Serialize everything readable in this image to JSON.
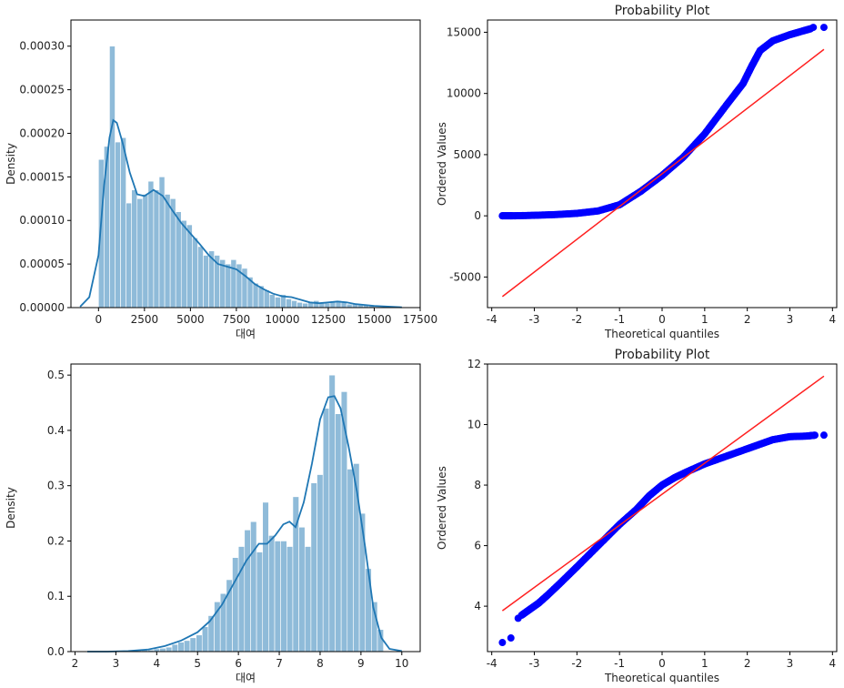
{
  "chart_data": [
    {
      "type": "bar",
      "subtype": "histogram-with-kde",
      "title": "",
      "xlabel": "대여",
      "ylabel": "Density",
      "xlim": [
        -1500,
        17500
      ],
      "ylim": [
        0,
        0.00033
      ],
      "xticks": [
        0,
        2500,
        5000,
        7500,
        10000,
        12500,
        15000,
        17500
      ],
      "yticks": [
        0,
        5e-05,
        0.0001,
        0.00015,
        0.0002,
        0.00025,
        0.0003
      ],
      "ytick_labels": [
        "0.00000",
        "0.00005",
        "0.00010",
        "0.00015",
        "0.00020",
        "0.00025",
        "0.00030"
      ],
      "xtick_labels": [
        "0",
        "2500",
        "5000",
        "7500",
        "10000",
        "12500",
        "15000",
        "17500"
      ],
      "bin_start": 0,
      "bin_width": 300,
      "values": [
        0.00017,
        0.000185,
        0.0003,
        0.00019,
        0.000195,
        0.00012,
        0.000135,
        0.000125,
        0.00013,
        0.000145,
        0.000135,
        0.00015,
        0.00013,
        0.000125,
        0.00011,
        0.0001,
        9.5e-05,
        8e-05,
        7e-05,
        6e-05,
        6.5e-05,
        6e-05,
        5.5e-05,
        5e-05,
        5.5e-05,
        5e-05,
        4.5e-05,
        3.5e-05,
        2.8e-05,
        2.5e-05,
        2e-05,
        1.5e-05,
        1.2e-05,
        1.5e-05,
        1e-05,
        8e-06,
        6e-06,
        5e-06,
        6e-06,
        8e-06,
        6e-06,
        5e-06,
        7e-06,
        8e-06,
        6e-06,
        4e-06,
        4e-06,
        4e-06,
        3e-06,
        2e-06,
        1e-06
      ],
      "kde": {
        "x": [
          -1000,
          -500,
          0,
          300,
          600,
          800,
          1000,
          1300,
          1700,
          2100,
          2500,
          3000,
          3500,
          4000,
          4500,
          5000,
          5500,
          6000,
          6500,
          7000,
          7500,
          8000,
          8500,
          9000,
          9500,
          10000,
          10500,
          11000,
          11500,
          12000,
          12500,
          13000,
          13500,
          14000,
          14500,
          15000,
          15500,
          16000,
          16500
        ],
        "y": [
          1e-06,
          1.2e-05,
          6e-05,
          0.00014,
          0.000195,
          0.000215,
          0.000212,
          0.00019,
          0.000155,
          0.00013,
          0.000128,
          0.000135,
          0.000128,
          0.000112,
          9.7e-05,
          8.5e-05,
          7.3e-05,
          6e-05,
          5e-05,
          4.7e-05,
          4.4e-05,
          3.6e-05,
          2.7e-05,
          2.1e-05,
          1.6e-05,
          1.3e-05,
          1.2e-05,
          9e-06,
          6e-06,
          5e-06,
          6e-06,
          7e-06,
          6e-06,
          4e-06,
          3e-06,
          2e-06,
          1.5e-06,
          8e-07,
          3e-07
        ]
      },
      "color": "#1f77b4",
      "bar_color": "#8fbbd9"
    },
    {
      "type": "scatter",
      "subtype": "probability-plot",
      "title": "Probability Plot",
      "xlabel": "Theoretical quantiles",
      "ylabel": "Ordered Values",
      "xlim": [
        -4.1,
        4.1
      ],
      "ylim": [
        -7500,
        16000
      ],
      "xticks": [
        -4,
        -3,
        -2,
        -1,
        0,
        1,
        2,
        3,
        4
      ],
      "yticks": [
        -5000,
        0,
        5000,
        10000,
        15000
      ],
      "xtick_labels": [
        "-4",
        "-3",
        "-2",
        "-1",
        "0",
        "1",
        "2",
        "3",
        "4"
      ],
      "ytick_labels": [
        "-5000",
        "0",
        "5000",
        "10000",
        "15000"
      ],
      "curve_x": [
        -3.75,
        -3.5,
        -3.0,
        -2.5,
        -2.0,
        -1.5,
        -1.0,
        -0.5,
        0.0,
        0.5,
        1.0,
        1.5,
        1.9,
        2.1,
        2.3,
        2.6,
        3.0,
        3.3,
        3.5
      ],
      "curve_y": [
        0,
        0,
        40,
        100,
        200,
        400,
        900,
        2000,
        3300,
        4800,
        6700,
        9000,
        10800,
        12200,
        13500,
        14300,
        14800,
        15100,
        15300
      ],
      "outliers_x": [
        -3.75,
        -3.55,
        -3.45,
        3.55,
        3.8
      ],
      "outliers_y": [
        0,
        0,
        0,
        15400,
        15400
      ],
      "fit_line": {
        "x": [
          -3.75,
          3.8
        ],
        "y": [
          -6600,
          13600
        ]
      },
      "marker_color": "#0000ff",
      "line_color": "#ff2020"
    },
    {
      "type": "bar",
      "subtype": "histogram-with-kde",
      "title": "",
      "xlabel": "대여",
      "ylabel": "Density",
      "xlim": [
        1.9,
        10.45
      ],
      "ylim": [
        0,
        0.52
      ],
      "xticks": [
        2,
        3,
        4,
        5,
        6,
        7,
        8,
        9,
        10
      ],
      "yticks": [
        0,
        0.1,
        0.2,
        0.3,
        0.4,
        0.5
      ],
      "xtick_labels": [
        "2",
        "3",
        "4",
        "5",
        "6",
        "7",
        "8",
        "9",
        "10"
      ],
      "ytick_labels": [
        "0.0",
        "0.1",
        "0.2",
        "0.3",
        "0.4",
        "0.5"
      ],
      "bin_start": 2.3,
      "bin_width": 0.148,
      "values": [
        0.001,
        0,
        0.001,
        0,
        0.001,
        0.001,
        0.001,
        0.002,
        0.002,
        0.003,
        0.003,
        0.005,
        0.006,
        0.008,
        0.013,
        0.017,
        0.02,
        0.025,
        0.03,
        0.045,
        0.065,
        0.09,
        0.105,
        0.13,
        0.17,
        0.19,
        0.22,
        0.235,
        0.18,
        0.27,
        0.21,
        0.2,
        0.2,
        0.19,
        0.28,
        0.225,
        0.19,
        0.305,
        0.32,
        0.44,
        0.5,
        0.43,
        0.47,
        0.33,
        0.34,
        0.25,
        0.15,
        0.09,
        0.04
      ],
      "kde": {
        "x": [
          2.3,
          2.8,
          3.3,
          3.8,
          4.2,
          4.6,
          5.0,
          5.3,
          5.6,
          5.9,
          6.2,
          6.5,
          6.7,
          6.9,
          7.1,
          7.25,
          7.4,
          7.6,
          7.8,
          8.0,
          8.2,
          8.35,
          8.5,
          8.7,
          8.9,
          9.1,
          9.3,
          9.5,
          9.7,
          10.0
        ],
        "y": [
          0.0,
          0.0,
          0.001,
          0.004,
          0.01,
          0.02,
          0.035,
          0.055,
          0.085,
          0.125,
          0.165,
          0.195,
          0.195,
          0.21,
          0.23,
          0.235,
          0.225,
          0.27,
          0.34,
          0.42,
          0.46,
          0.462,
          0.44,
          0.37,
          0.29,
          0.19,
          0.08,
          0.025,
          0.005,
          0.001
        ]
      },
      "color": "#1f77b4",
      "bar_color": "#8fbbd9"
    },
    {
      "type": "scatter",
      "subtype": "probability-plot",
      "title": "Probability Plot",
      "xlabel": "Theoretical quantiles",
      "ylabel": "Ordered Values",
      "xlim": [
        -4.1,
        4.1
      ],
      "ylim": [
        2.5,
        12
      ],
      "xticks": [
        -4,
        -3,
        -2,
        -1,
        0,
        1,
        2,
        3,
        4
      ],
      "yticks": [
        4,
        6,
        8,
        10,
        12
      ],
      "xtick_labels": [
        "-4",
        "-3",
        "-2",
        "-1",
        "0",
        "1",
        "2",
        "3",
        "4"
      ],
      "ytick_labels": [
        "4",
        "6",
        "8",
        "10",
        "12"
      ],
      "curve_x": [
        -3.3,
        -3.1,
        -2.9,
        -2.7,
        -2.4,
        -2.0,
        -1.5,
        -1.0,
        -0.6,
        -0.3,
        0.0,
        0.3,
        0.6,
        1.0,
        1.5,
        2.0,
        2.3,
        2.6,
        3.0,
        3.4,
        3.6
      ],
      "curve_y": [
        3.7,
        3.9,
        4.1,
        4.35,
        4.75,
        5.3,
        6.0,
        6.7,
        7.2,
        7.65,
        8.0,
        8.25,
        8.45,
        8.7,
        8.95,
        9.2,
        9.35,
        9.5,
        9.6,
        9.62,
        9.65
      ],
      "outliers_x": [
        -3.75,
        -3.55,
        -3.38,
        3.8
      ],
      "outliers_y": [
        2.8,
        2.95,
        3.6,
        9.65
      ],
      "fit_line": {
        "x": [
          -3.75,
          3.8
        ],
        "y": [
          3.85,
          11.6
        ]
      },
      "marker_color": "#0000ff",
      "line_color": "#ff2020"
    }
  ]
}
